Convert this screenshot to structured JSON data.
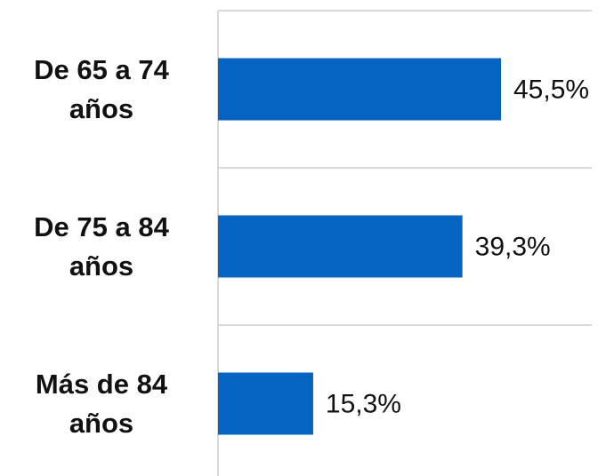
{
  "chart_data": {
    "type": "bar",
    "orientation": "horizontal",
    "categories": [
      "De 65 a 74 años",
      "De 75 a 84 años",
      "Más de 84 años"
    ],
    "values": [
      45.5,
      39.3,
      15.3
    ],
    "value_labels": [
      "45,5%",
      "39,3%",
      "15,3%"
    ],
    "color": "#0563c1"
  }
}
